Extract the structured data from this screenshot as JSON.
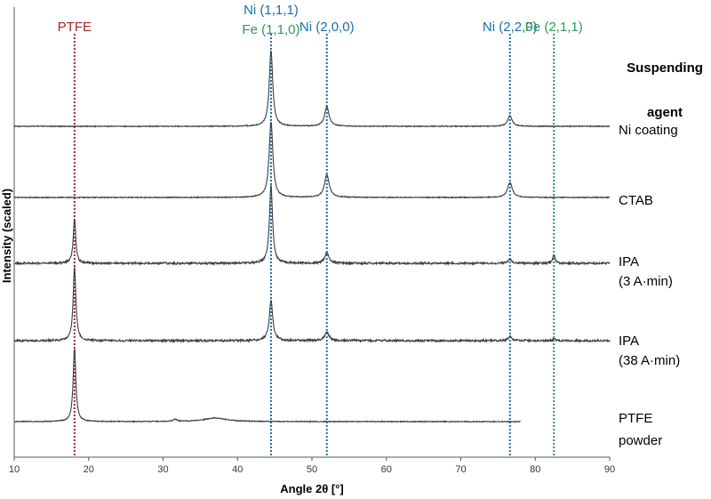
{
  "chart_data": {
    "type": "line",
    "xlabel": "Angle 2θ [°]",
    "ylabel": "Intensity (scaled)",
    "xlim": [
      10,
      90
    ],
    "xticks": [
      10,
      20,
      30,
      40,
      50,
      60,
      70,
      80,
      90
    ],
    "legend_title": [
      "Suspending",
      "agent"
    ],
    "grid": false,
    "reference_lines": [
      {
        "x": 18.1,
        "color": "#a0282d",
        "labels": [
          "PTFE"
        ]
      },
      {
        "x": 44.5,
        "color": "#1a6fa8",
        "labels": [
          "Ni (1,1,1)",
          "Fe (1,1,0)"
        ],
        "label_colors": [
          "#1a6fa8",
          "#2e9a5a"
        ]
      },
      {
        "x": 52.0,
        "color": "#1a6fa8",
        "labels": [
          "Ni (2,0,0)"
        ],
        "label_colors": [
          "#1a6fa8"
        ]
      },
      {
        "x": 76.6,
        "color": "#1a6fa8",
        "labels": [
          "Ni (2,2,0)"
        ],
        "label_colors": [
          "#1a6fa8"
        ]
      },
      {
        "x": 82.5,
        "color": "#2e9a5a",
        "labels": [
          "Fe (2,1,1)"
        ],
        "label_colors": [
          "#2e9a5a"
        ]
      }
    ],
    "series": [
      {
        "name": "Ni coating",
        "label_lines": [
          "Ni coating"
        ],
        "x_range": [
          10,
          90
        ],
        "baseline": 0.0,
        "peaks": [
          {
            "x": 44.5,
            "h": 1.0,
            "w": 0.28
          },
          {
            "x": 52.0,
            "h": 0.26,
            "w": 0.35
          },
          {
            "x": 76.6,
            "h": 0.14,
            "w": 0.35
          }
        ]
      },
      {
        "name": "CTAB",
        "label_lines": [
          "CTAB"
        ],
        "x_range": [
          10,
          90
        ],
        "baseline": 0.0,
        "peaks": [
          {
            "x": 44.5,
            "h": 1.0,
            "w": 0.3
          },
          {
            "x": 52.0,
            "h": 0.3,
            "w": 0.38
          },
          {
            "x": 76.6,
            "h": 0.2,
            "w": 0.38
          }
        ]
      },
      {
        "name": "IPA (3 A·min)",
        "label_lines": [
          "IPA",
          "(3 A·min)"
        ],
        "x_range": [
          10,
          90
        ],
        "baseline": 0.0,
        "peaks": [
          {
            "x": 18.1,
            "h": 0.58,
            "w": 0.2
          },
          {
            "x": 44.5,
            "h": 1.0,
            "w": 0.25
          },
          {
            "x": 52.0,
            "h": 0.13,
            "w": 0.35
          },
          {
            "x": 76.6,
            "h": 0.05,
            "w": 0.3
          },
          {
            "x": 82.5,
            "h": 0.11,
            "w": 0.18
          }
        ]
      },
      {
        "name": "IPA (38 A·min)",
        "label_lines": [
          "IPA",
          "(38 A·min)"
        ],
        "x_range": [
          10,
          90
        ],
        "baseline": 0.0,
        "peaks": [
          {
            "x": 18.1,
            "h": 1.0,
            "w": 0.22
          },
          {
            "x": 44.5,
            "h": 0.55,
            "w": 0.28
          },
          {
            "x": 52.0,
            "h": 0.12,
            "w": 0.35
          },
          {
            "x": 76.6,
            "h": 0.06,
            "w": 0.3
          },
          {
            "x": 82.5,
            "h": 0.03,
            "w": 0.18
          }
        ]
      },
      {
        "name": "PTFE powder",
        "label_lines": [
          "PTFE",
          "powder"
        ],
        "x_range": [
          10,
          78
        ],
        "baseline": 0.0,
        "peaks": [
          {
            "x": 18.1,
            "h": 1.0,
            "w": 0.22
          },
          {
            "x": 31.6,
            "h": 0.03,
            "w": 0.3
          },
          {
            "x": 37.0,
            "h": 0.05,
            "w": 1.8
          }
        ]
      }
    ]
  }
}
